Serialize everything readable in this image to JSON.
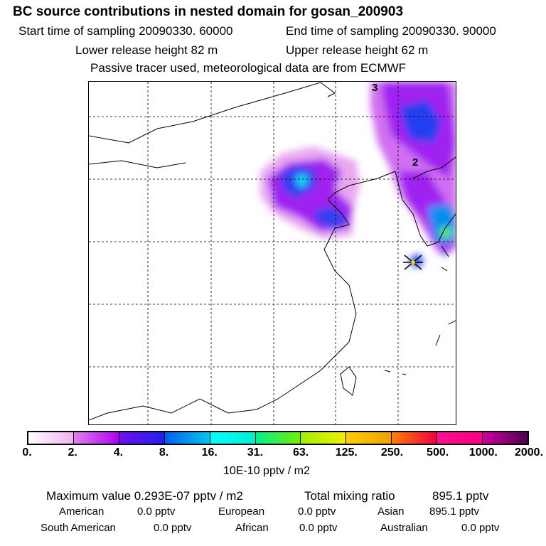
{
  "header": {
    "title": "BC  source contributions in nested domain for gosan_200903",
    "start_label": "Start time of sampling 20090330. 60000",
    "end_label": "End time of sampling 20090330. 90000",
    "lower_label": "Lower release height   82 m",
    "upper_label": "Upper release height   62 m",
    "info": "Passive tracer used, meteorological data are from ECMWF"
  },
  "map": {
    "marker_labels": [
      "3",
      "2"
    ],
    "receptor": "gosan"
  },
  "legend": {
    "ticks": [
      "0.",
      "2.",
      "4.",
      "8.",
      "16.",
      "31.",
      "63.",
      "125.",
      "250.",
      "500.",
      "1000.",
      "2000."
    ],
    "colors": [
      [
        "#ffffff",
        "#f0b0f0"
      ],
      [
        "#e080f0",
        "#b000f0"
      ],
      [
        "#7010f0",
        "#2020f0"
      ],
      [
        "#0060f0",
        "#00c8f0"
      ],
      [
        "#00ffff",
        "#00f0d0"
      ],
      [
        "#00f090",
        "#70f000"
      ],
      [
        "#a0f000",
        "#f0f000"
      ],
      [
        "#ffd000",
        "#f0a000"
      ],
      [
        "#ff8000",
        "#f00040"
      ],
      [
        "#ff1090",
        "#ff0080"
      ],
      [
        "#d000a0",
        "#500050"
      ]
    ],
    "unit": "10E-10 pptv / m2"
  },
  "footer": {
    "max_label": "Maximum value  0.293E-07 pptv / m2",
    "total_label": "Total mixing ratio",
    "total_value": "895.1 pptv",
    "rows": [
      [
        {
          "name": "American",
          "value": "0.0 pptv"
        },
        {
          "name": "European",
          "value": "0.0 pptv"
        },
        {
          "name": "Asian",
          "value": "895.1 pptv"
        }
      ],
      [
        {
          "name": "South American",
          "value": "0.0 pptv"
        },
        {
          "name": "African",
          "value": "0.0 pptv"
        },
        {
          "name": "Australian",
          "value": "0.0 pptv"
        }
      ]
    ]
  }
}
